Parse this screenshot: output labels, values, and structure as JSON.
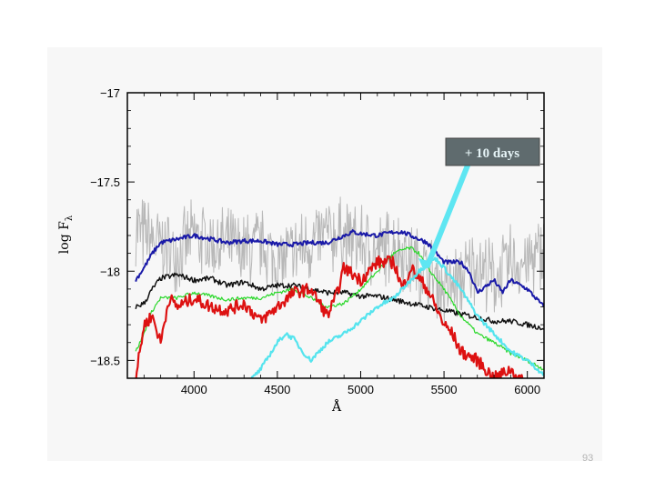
{
  "page_number": "93",
  "callout": {
    "label": "+ 10 days",
    "box_color": "#5f6b6e",
    "arrow_color": "#5ee6f2"
  },
  "chart_data": {
    "type": "line",
    "title": "",
    "xlabel": "Å",
    "ylabel": "log F",
    "ylabel_subscript": "λ",
    "xlim": [
      3600,
      6100
    ],
    "ylim": [
      -18.6,
      -17.0
    ],
    "xticks": [
      4000,
      4500,
      5000,
      5500,
      6000
    ],
    "xtick_labels": [
      "4000",
      "4500",
      "5000",
      "5500",
      "6000"
    ],
    "yticks": [
      -17,
      -17.5,
      -18,
      -18.5
    ],
    "ytick_labels": [
      "−17",
      "−17.5",
      "−18",
      "−18.5"
    ],
    "grid": false,
    "series": [
      {
        "color": "#b8b8b8",
        "width": 1,
        "noise": 0.14,
        "x": [
          3650,
          3700,
          3800,
          3900,
          4000,
          4100,
          4200,
          4300,
          4400,
          4500,
          4600,
          4700,
          4800,
          4900,
          5000,
          5100,
          5200,
          5300,
          5400,
          5500,
          5600,
          5700,
          5800,
          5900,
          6000,
          6100
        ],
        "y": [
          -17.75,
          -17.8,
          -17.85,
          -17.9,
          -17.8,
          -17.85,
          -17.85,
          -17.9,
          -17.85,
          -17.95,
          -17.9,
          -17.85,
          -17.8,
          -17.8,
          -17.85,
          -17.9,
          -17.85,
          -17.95,
          -18.0,
          -18.1,
          -18.05,
          -17.95,
          -18.05,
          -17.95,
          -17.95,
          -17.9
        ]
      },
      {
        "color": "#1a1aa8",
        "width": 2,
        "noise": 0.012,
        "x": [
          3650,
          3700,
          3750,
          3800,
          3900,
          4000,
          4100,
          4200,
          4300,
          4400,
          4500,
          4600,
          4700,
          4800,
          4900,
          4950,
          5000,
          5100,
          5200,
          5250,
          5300,
          5400,
          5500,
          5600,
          5650,
          5700,
          5800,
          5850,
          5900,
          6000,
          6100
        ],
        "y": [
          -18.05,
          -17.98,
          -17.9,
          -17.84,
          -17.82,
          -17.8,
          -17.82,
          -17.84,
          -17.83,
          -17.83,
          -17.85,
          -17.85,
          -17.84,
          -17.84,
          -17.8,
          -17.78,
          -17.79,
          -17.8,
          -17.78,
          -17.78,
          -17.8,
          -17.84,
          -17.95,
          -17.95,
          -18.0,
          -18.12,
          -18.05,
          -18.12,
          -18.05,
          -18.1,
          -18.2
        ]
      },
      {
        "color": "#111111",
        "width": 1.5,
        "noise": 0.015,
        "x": [
          3650,
          3700,
          3750,
          3800,
          3900,
          4000,
          4100,
          4200,
          4300,
          4400,
          4500,
          4600,
          4700,
          4800,
          4900,
          5000,
          5100,
          5200,
          5300,
          5400,
          5500,
          5600,
          5700,
          5800,
          5900,
          6000,
          6100
        ],
        "y": [
          -18.2,
          -18.18,
          -18.1,
          -18.04,
          -18.02,
          -18.05,
          -18.04,
          -18.08,
          -18.06,
          -18.1,
          -18.08,
          -18.08,
          -18.1,
          -18.12,
          -18.12,
          -18.14,
          -18.14,
          -18.16,
          -18.18,
          -18.2,
          -18.22,
          -18.24,
          -18.26,
          -18.28,
          -18.28,
          -18.3,
          -18.32
        ]
      },
      {
        "color": "#2bd82b",
        "width": 1.2,
        "noise": 0.01,
        "x": [
          3650,
          3700,
          3750,
          3800,
          3900,
          4000,
          4100,
          4200,
          4300,
          4400,
          4500,
          4600,
          4700,
          4800,
          4900,
          5000,
          5100,
          5200,
          5250,
          5300,
          5350,
          5400,
          5500,
          5600,
          5700,
          5800,
          5900,
          6000,
          6100
        ],
        "y": [
          -18.45,
          -18.35,
          -18.22,
          -18.15,
          -18.15,
          -18.12,
          -18.14,
          -18.16,
          -18.15,
          -18.15,
          -18.12,
          -18.1,
          -18.15,
          -18.2,
          -18.18,
          -18.1,
          -18.0,
          -17.9,
          -17.88,
          -17.87,
          -17.9,
          -17.98,
          -18.1,
          -18.25,
          -18.35,
          -18.4,
          -18.46,
          -18.5,
          -18.55
        ]
      },
      {
        "color": "#dd1111",
        "width": 2.2,
        "noise": 0.035,
        "x": [
          3650,
          3700,
          3750,
          3800,
          3850,
          3900,
          4000,
          4100,
          4200,
          4300,
          4400,
          4500,
          4600,
          4700,
          4800,
          4850,
          4900,
          5000,
          5100,
          5200,
          5250,
          5300,
          5400,
          5450,
          5500,
          5550,
          5600,
          5700,
          5800,
          5900,
          6000,
          6100
        ],
        "y": [
          -18.6,
          -18.3,
          -18.25,
          -18.4,
          -18.15,
          -18.2,
          -18.15,
          -18.2,
          -18.22,
          -18.18,
          -18.28,
          -18.2,
          -18.12,
          -18.1,
          -18.25,
          -18.15,
          -17.98,
          -18.05,
          -17.95,
          -17.95,
          -18.1,
          -17.98,
          -18.1,
          -18.2,
          -18.3,
          -18.35,
          -18.45,
          -18.5,
          -18.6,
          -18.55,
          -18.65,
          -18.65
        ]
      },
      {
        "color": "#55e4ee",
        "width": 2.2,
        "noise": 0.012,
        "x": [
          4150,
          4300,
          4400,
          4500,
          4550,
          4600,
          4650,
          4700,
          4750,
          4800,
          4900,
          5000,
          5100,
          5200,
          5300,
          5400,
          5450,
          5500,
          5600,
          5700,
          5800,
          5900,
          6000,
          6100
        ],
        "y": [
          -18.75,
          -18.65,
          -18.55,
          -18.4,
          -18.35,
          -18.38,
          -18.45,
          -18.5,
          -18.45,
          -18.4,
          -18.35,
          -18.28,
          -18.2,
          -18.15,
          -18.05,
          -17.95,
          -17.93,
          -17.98,
          -18.1,
          -18.25,
          -18.35,
          -18.45,
          -18.5,
          -18.58
        ]
      }
    ]
  }
}
